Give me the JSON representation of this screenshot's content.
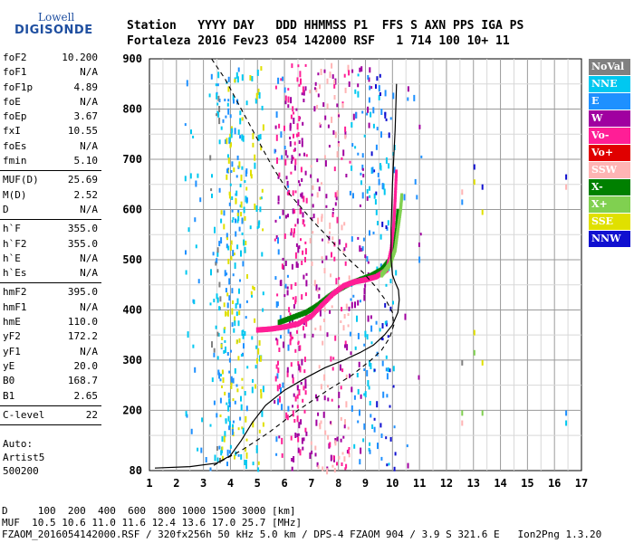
{
  "logo": {
    "line1": "Lowell",
    "line2": "DIGISONDE"
  },
  "header": {
    "line1": "Station   YYYY DAY   DDD HHMMSS P1  FFS S AXN PPS IGA PS",
    "line2": "Fortaleza 2016 Fev23 054 142000 RSF   1 714 100 10+ 11"
  },
  "params_groups": [
    [
      [
        "foF2",
        "10.200"
      ],
      [
        "foF1",
        "N/A"
      ],
      [
        "foF1p",
        "4.89"
      ],
      [
        "foE",
        "N/A"
      ],
      [
        "foEp",
        "3.67"
      ],
      [
        "fxI",
        "10.55"
      ],
      [
        "foEs",
        "N/A"
      ],
      [
        "fmin",
        "5.10"
      ]
    ],
    [
      [
        "MUF(D)",
        "25.69"
      ],
      [
        "M(D)",
        "2.52"
      ],
      [
        "D",
        "N/A"
      ]
    ],
    [
      [
        "h`F",
        "355.0"
      ],
      [
        "h`F2",
        "355.0"
      ],
      [
        "h`E",
        "N/A"
      ],
      [
        "h`Es",
        "N/A"
      ]
    ],
    [
      [
        "hmF2",
        "395.0"
      ],
      [
        "hmF1",
        "N/A"
      ],
      [
        "hmE",
        "110.0"
      ],
      [
        "yF2",
        "172.2"
      ],
      [
        "yF1",
        "N/A"
      ],
      [
        "yE",
        "20.0"
      ],
      [
        "B0",
        "168.7"
      ],
      [
        "B1",
        "2.65"
      ]
    ],
    [
      [
        "C-level",
        "22"
      ]
    ]
  ],
  "auto": {
    "line1": "Auto:",
    "line2": "Artist5",
    "line3": "500200"
  },
  "legend": [
    {
      "label": "NoVal",
      "color": "#808080"
    },
    {
      "label": "NNE",
      "color": "#00c8f0"
    },
    {
      "label": "E",
      "color": "#1e90ff"
    },
    {
      "label": "W",
      "color": "#a000a0"
    },
    {
      "label": "Vo-",
      "color": "#ff1e96"
    },
    {
      "label": "Vo+",
      "color": "#e00000"
    },
    {
      "label": "SSW",
      "color": "#ffb4b4"
    },
    {
      "label": "X-",
      "color": "#008000"
    },
    {
      "label": "X+",
      "color": "#80d050"
    },
    {
      "label": "SSE",
      "color": "#e0e000"
    },
    {
      "label": "NNW",
      "color": "#1010d0"
    }
  ],
  "footer": {
    "d_line": "D     100  200  400  600  800 1000 1500 3000 [km]",
    "muf_line": "MUF  10.5 10.6 11.0 11.6 12.4 13.6 17.0 25.7 [MHz]",
    "info_line": "FZAOM_2016054142000.RSF / 320fx256h 50 kHz 5.0 km / DPS-4 FZAOM 904 / 3.9 S 321.6 E   Ion2Png 1.3.20"
  },
  "chart_data": {
    "type": "scatter",
    "title": "",
    "xlabel": "",
    "ylabel": "",
    "xlim": [
      1,
      17
    ],
    "ylim": [
      80,
      900
    ],
    "x_ticks": [
      1,
      2,
      3,
      4,
      5,
      6,
      7,
      8,
      9,
      10,
      11,
      12,
      13,
      14,
      15,
      16,
      17
    ],
    "y_ticks": [
      80,
      200,
      300,
      400,
      500,
      600,
      700,
      800,
      900
    ],
    "grid": true,
    "series": [
      {
        "color_ref": "X-",
        "x": [
          5.8,
          6.3,
          6.8,
          7.2,
          7.6,
          8.0,
          8.4,
          8.8,
          9.2,
          9.6,
          9.9,
          10.05,
          10.15,
          10.2
        ],
        "y": [
          375,
          385,
          395,
          408,
          425,
          440,
          452,
          460,
          468,
          480,
          500,
          530,
          560,
          600
        ]
      },
      {
        "color_ref": "Vo-",
        "x": [
          5.0,
          5.5,
          6.0,
          6.5,
          7.0,
          7.4,
          7.8,
          8.2,
          8.6,
          9.0,
          9.4,
          9.8,
          9.95,
          10.05,
          10.1,
          10.15
        ],
        "y": [
          360,
          362,
          366,
          372,
          388,
          410,
          432,
          448,
          456,
          460,
          466,
          480,
          520,
          570,
          620,
          680
        ]
      },
      {
        "color_ref": "X+",
        "x": [
          9.6,
          9.9,
          10.1,
          10.2,
          10.3,
          10.35
        ],
        "y": [
          470,
          490,
          520,
          560,
          600,
          630
        ]
      }
    ],
    "profile_line": {
      "x": [
        1.2,
        2.5,
        3.5,
        4.0,
        4.4,
        4.8,
        5.3,
        6.0,
        6.8,
        7.5,
        8.2,
        8.8,
        9.3,
        9.7,
        10.0,
        10.2,
        10.25,
        10.22,
        10.1,
        10.0,
        9.95,
        9.95,
        10.0,
        10.1,
        10.15
      ],
      "y": [
        85,
        88,
        95,
        110,
        140,
        175,
        210,
        240,
        265,
        285,
        300,
        315,
        330,
        350,
        370,
        395,
        420,
        440,
        455,
        470,
        500,
        560,
        650,
        760,
        850
      ]
    },
    "dashed_profile": {
      "x": [
        3.3,
        3.8,
        4.2,
        4.8,
        5.5,
        6.2,
        7.0,
        7.7,
        8.3,
        8.9,
        9.4,
        9.8,
        10.0,
        10.05,
        9.9,
        9.6,
        9.2,
        8.5,
        7.6,
        6.5,
        5.4,
        4.4,
        3.7,
        3.3
      ],
      "y": [
        900,
        860,
        820,
        760,
        690,
        630,
        580,
        540,
        505,
        475,
        445,
        415,
        395,
        370,
        345,
        320,
        300,
        270,
        240,
        200,
        155,
        120,
        100,
        88
      ]
    }
  }
}
